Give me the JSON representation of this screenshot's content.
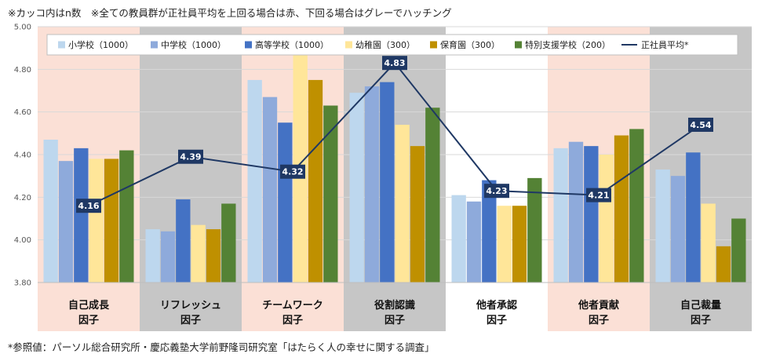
{
  "notes": {
    "top": "※カッコ内はn数　※全ての教員群が正社員平均を上回る場合は赤、下回る場合はグレーでハッチング",
    "bottom": "*参照値：パーソル総合研究所・慶応義塾大学前野隆司研究室「はたらく人の幸せに関する調査」"
  },
  "chart_data": {
    "type": "bar",
    "categories": [
      [
        "自己成長",
        "因子"
      ],
      [
        "リフレッシュ",
        "因子"
      ],
      [
        "チームワーク",
        "因子"
      ],
      [
        "役割認識",
        "因子"
      ],
      [
        "他者承認",
        "因子"
      ],
      [
        "他者貢献",
        "因子"
      ],
      [
        "自己裁量",
        "因子"
      ]
    ],
    "category_shading": [
      "above",
      "below",
      "above",
      "below",
      "none",
      "above",
      "below"
    ],
    "shading_colors": {
      "above": "#fbe0d6",
      "below": "#c6c6c6",
      "none": "#ffffff"
    },
    "ylim": [
      3.8,
      5.0
    ],
    "yticks": [
      "3.80",
      "4.00",
      "4.20",
      "4.40",
      "4.60",
      "4.80",
      "5.00"
    ],
    "series": [
      {
        "name": "小学校（1000）",
        "color": "#bdd7ee",
        "values": [
          4.47,
          4.05,
          4.75,
          4.69,
          4.21,
          4.43,
          4.33
        ]
      },
      {
        "name": "中学校（1000）",
        "color": "#8eaadb",
        "values": [
          4.37,
          4.04,
          4.67,
          4.72,
          4.18,
          4.46,
          4.3
        ]
      },
      {
        "name": "高等学校（1000）",
        "color": "#4472c4",
        "values": [
          4.43,
          4.19,
          4.55,
          4.74,
          4.28,
          4.44,
          4.41
        ]
      },
      {
        "name": "幼稚園（300）",
        "color": "#ffe699",
        "values": [
          4.38,
          4.07,
          4.87,
          4.54,
          4.16,
          4.4,
          4.17
        ]
      },
      {
        "name": "保育園（300）",
        "color": "#bf9000",
        "values": [
          4.38,
          4.05,
          4.75,
          4.44,
          4.16,
          4.49,
          3.97
        ]
      },
      {
        "name": "特別支援学校（200）",
        "color": "#548235",
        "values": [
          4.42,
          4.17,
          4.63,
          4.62,
          4.29,
          4.52,
          4.1
        ]
      }
    ],
    "line": {
      "name": "正社員平均*",
      "color": "#1f3864",
      "values": [
        4.16,
        4.39,
        4.32,
        4.83,
        4.23,
        4.21,
        4.54
      ],
      "labels": [
        "4.16",
        "4.39",
        "4.32",
        "4.83",
        "4.23",
        "4.21",
        "4.54"
      ]
    }
  }
}
